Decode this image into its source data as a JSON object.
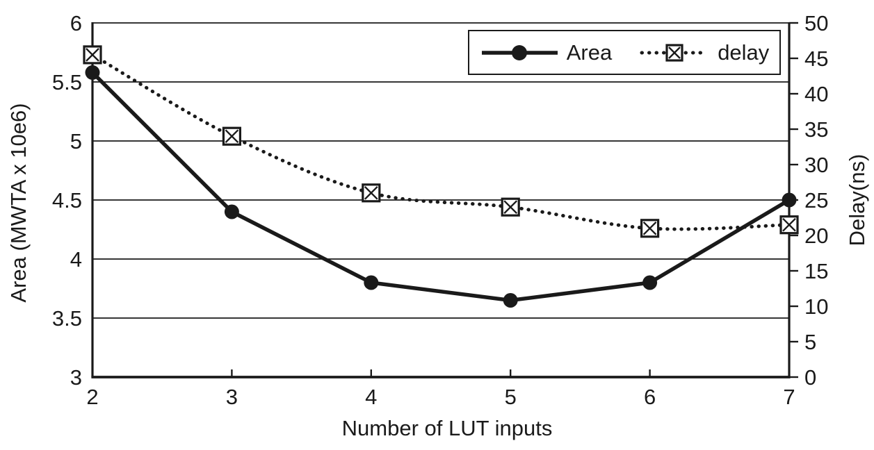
{
  "colors": {
    "ink": "#1a1a1a",
    "background": "#ffffff"
  },
  "legend": {
    "area_label": "Area",
    "delay_label": "delay"
  },
  "chart_data": {
    "type": "line",
    "x": [
      2,
      3,
      4,
      5,
      6,
      7
    ],
    "x_ticklabels": [
      "2",
      "3",
      "4",
      "5",
      "6",
      "7"
    ],
    "series": [
      {
        "name": "Area",
        "axis": "left",
        "line": "solid",
        "marker": "filled-circle",
        "smooth": false,
        "values": [
          5.58,
          4.4,
          3.8,
          3.65,
          3.8,
          4.5
        ]
      },
      {
        "name": "delay",
        "axis": "right",
        "line": "dotted",
        "marker": "square-with-x",
        "smooth": true,
        "values": [
          45.5,
          34,
          26,
          24,
          21,
          21.5
        ]
      }
    ],
    "xlabel": "Number of LUT inputs",
    "ylabel_left": "Area (MWTA x 10e6)",
    "ylabel_right": "Delay(ns)",
    "y_left": {
      "min": 3,
      "max": 6,
      "tick_step": 0.5,
      "ticklabels": [
        "6",
        "5.5",
        "5",
        "4.5",
        "4",
        "3.5",
        "3"
      ]
    },
    "y_right": {
      "min": 0,
      "max": 50,
      "tick_step": 5,
      "ticklabels": [
        "50",
        "45",
        "40",
        "35",
        "30",
        "25",
        "20",
        "15",
        "10",
        "5",
        "0"
      ]
    },
    "grid": "horizontal",
    "legend_position": "top-right"
  }
}
